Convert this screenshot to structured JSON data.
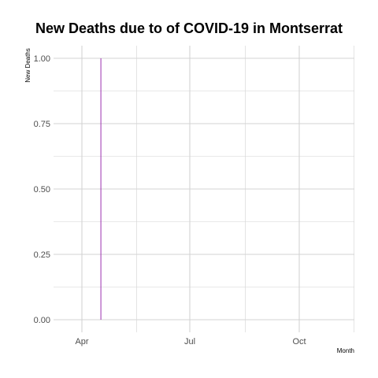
{
  "chart_data": {
    "type": "line",
    "title": "New Deaths due to of COVID-19 in Montserrat",
    "xlabel": "Month",
    "ylabel": "New  Deaths",
    "x_tick_labels": [
      "Apr",
      "Jul",
      "Oct"
    ],
    "y_tick_labels": [
      "0.00",
      "0.25",
      "0.50",
      "0.75",
      "1.00"
    ],
    "ylim": [
      0,
      1
    ],
    "grid": true,
    "series": [
      {
        "color": "#9b30b0",
        "x": [
          "2020-04-17",
          "2020-04-17"
        ],
        "y": [
          0,
          1
        ]
      }
    ]
  }
}
